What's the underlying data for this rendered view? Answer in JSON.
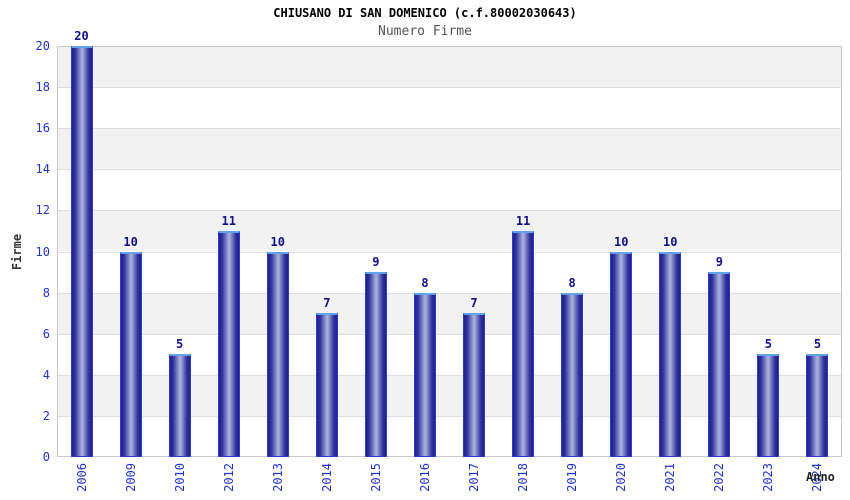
{
  "chart_data": {
    "type": "bar",
    "title": "CHIUSANO DI SAN DOMENICO (c.f.80002030643)",
    "subtitle": "Numero Firme",
    "xlabel": "Anno",
    "ylabel": "Firme",
    "categories": [
      "2006",
      "2009",
      "2010",
      "2012",
      "2013",
      "2014",
      "2015",
      "2016",
      "2017",
      "2018",
      "2019",
      "2020",
      "2021",
      "2022",
      "2023",
      "2024"
    ],
    "values": [
      20,
      10,
      5,
      11,
      10,
      7,
      9,
      8,
      7,
      11,
      8,
      10,
      10,
      9,
      5,
      5
    ],
    "ylim": [
      0,
      20
    ],
    "yticks": [
      0,
      2,
      4,
      6,
      8,
      10,
      12,
      14,
      16,
      18,
      20
    ],
    "grid": true,
    "legend_position": "none",
    "band_pattern": "alternating gray bands every 2 units (2-4, 6-8, 10-12, 14-16, 18-20)",
    "colors": {
      "bar_edge_dark": "#20208a",
      "bar_center_light": "#aab2dc",
      "bar_side_border": "#2d3bd0",
      "bar_top_cap": "#62a2e8",
      "tick_label": "#2233cc",
      "value_label": "#10108a",
      "title": "#000000",
      "subtitle": "#555555",
      "axis_label": "#333333",
      "band_gray": "#f2f2f2",
      "gridline": "#dedede",
      "plot_border": "#c8c8c8",
      "background": "#ffffff"
    }
  }
}
